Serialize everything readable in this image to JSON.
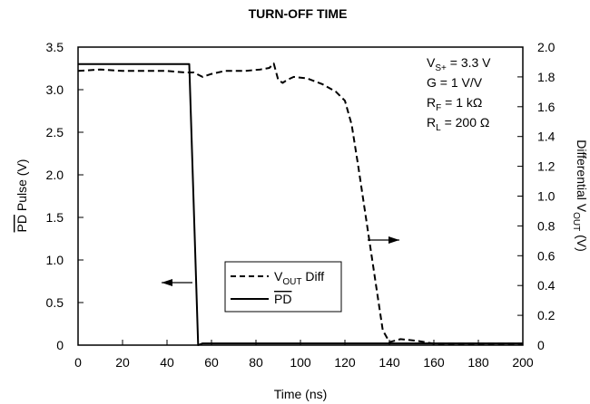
{
  "chart_data": {
    "type": "line",
    "title": "TURN-OFF TIME",
    "xlabel": "Time (ns)",
    "ylabel_left": {
      "overlined": "PD",
      "rest": " Pulse (V)"
    },
    "ylabel_right": {
      "base": "Differential V",
      "sub": "OUT",
      "tail": " (V)"
    },
    "xlim": [
      0,
      200
    ],
    "ylim_left": [
      0,
      3.5
    ],
    "ylim_right": [
      0,
      2.0
    ],
    "x_ticks": [
      0,
      20,
      40,
      60,
      80,
      100,
      120,
      140,
      160,
      180,
      200
    ],
    "y_left_ticks": [
      "0",
      "0.5",
      "1.0",
      "1.5",
      "2.0",
      "2.5",
      "3.0",
      "3.5"
    ],
    "y_right_ticks": [
      "0",
      "0.2",
      "0.4",
      "0.6",
      "0.8",
      "1.0",
      "1.2",
      "1.4",
      "1.6",
      "1.8",
      "2.0"
    ],
    "grid": false,
    "legend_position": "bottom-center",
    "conditions": [
      {
        "base": "V",
        "sub": "S+",
        "tail": " = 3.3 V"
      },
      {
        "base": "G = 1 V/V",
        "sub": "",
        "tail": ""
      },
      {
        "base": "R",
        "sub": "F",
        "tail": " = 1 kΩ"
      },
      {
        "base": "R",
        "sub": "L",
        "tail": " = 200 Ω"
      }
    ],
    "series": [
      {
        "name": {
          "base": "V",
          "sub": "OUT",
          "tail": " Diff"
        },
        "axis": "right",
        "style": "dashed",
        "points": [
          [
            0,
            1.84
          ],
          [
            10,
            1.85
          ],
          [
            20,
            1.84
          ],
          [
            30,
            1.84
          ],
          [
            40,
            1.84
          ],
          [
            48,
            1.83
          ],
          [
            52,
            1.83
          ],
          [
            56,
            1.8
          ],
          [
            60,
            1.82
          ],
          [
            66,
            1.84
          ],
          [
            75,
            1.84
          ],
          [
            82,
            1.85
          ],
          [
            86,
            1.86
          ],
          [
            88,
            1.89
          ],
          [
            90,
            1.78
          ],
          [
            92,
            1.76
          ],
          [
            94,
            1.78
          ],
          [
            97,
            1.8
          ],
          [
            103,
            1.79
          ],
          [
            110,
            1.75
          ],
          [
            116,
            1.7
          ],
          [
            120,
            1.64
          ],
          [
            123,
            1.48
          ],
          [
            126,
            1.2
          ],
          [
            130,
            0.8
          ],
          [
            134,
            0.4
          ],
          [
            137,
            0.1
          ],
          [
            140,
            0.02
          ],
          [
            145,
            0.04
          ],
          [
            152,
            0.03
          ],
          [
            160,
            0.01
          ],
          [
            170,
            0.01
          ],
          [
            180,
            0.01
          ],
          [
            200,
            0.01
          ]
        ]
      },
      {
        "name": {
          "overlined": "PD"
        },
        "axis": "left",
        "style": "solid",
        "points": [
          [
            0,
            3.3
          ],
          [
            50,
            3.3
          ],
          [
            54,
            0.0
          ],
          [
            56,
            0.02
          ],
          [
            80,
            0.02
          ],
          [
            100,
            0.02
          ],
          [
            120,
            0.02
          ],
          [
            140,
            0.02
          ],
          [
            160,
            0.02
          ],
          [
            200,
            0.02
          ]
        ]
      }
    ],
    "arrows": [
      {
        "direction": "left",
        "points_to": "left axis"
      },
      {
        "direction": "right",
        "points_to": "right axis"
      }
    ]
  }
}
